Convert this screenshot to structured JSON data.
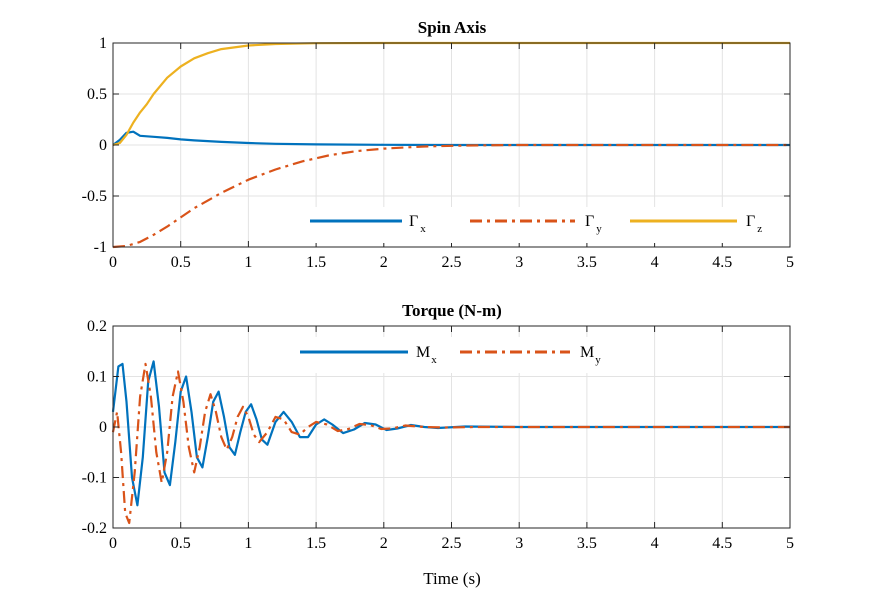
{
  "chart_data": [
    {
      "type": "line",
      "title": "Spin Axis",
      "xlabel": "",
      "ylabel": "",
      "xlim": [
        0,
        5
      ],
      "ylim": [
        -1,
        1
      ],
      "xticks": [
        "0",
        "0.5",
        "1",
        "1.5",
        "2",
        "2.5",
        "3",
        "3.5",
        "4",
        "4.5",
        "5"
      ],
      "yticks": [
        "-1",
        "-0.5",
        "0",
        "0.5",
        "1"
      ],
      "grid": true,
      "legend_position": "bottom-right, horizontal",
      "series": [
        {
          "name": "Γx",
          "symbol": "Γ",
          "sub": "x",
          "color": "#0072BD",
          "dash": "solid",
          "points": [
            [
              0,
              0
            ],
            [
              0.05,
              0.05
            ],
            [
              0.1,
              0.12
            ],
            [
              0.15,
              0.13
            ],
            [
              0.2,
              0.09
            ],
            [
              0.3,
              0.08
            ],
            [
              0.4,
              0.07
            ],
            [
              0.5,
              0.055
            ],
            [
              0.6,
              0.045
            ],
            [
              0.8,
              0.03
            ],
            [
              1.0,
              0.02
            ],
            [
              1.2,
              0.012
            ],
            [
              1.5,
              0.006
            ],
            [
              2.0,
              0.002
            ],
            [
              2.5,
              0.0
            ],
            [
              5.0,
              0.0
            ]
          ]
        },
        {
          "name": "Γy",
          "symbol": "Γ",
          "sub": "y",
          "color": "#D95319",
          "dash": "dashdot",
          "points": [
            [
              0,
              -1.0
            ],
            [
              0.1,
              -0.99
            ],
            [
              0.2,
              -0.95
            ],
            [
              0.3,
              -0.88
            ],
            [
              0.4,
              -0.8
            ],
            [
              0.5,
              -0.71
            ],
            [
              0.6,
              -0.62
            ],
            [
              0.8,
              -0.47
            ],
            [
              1.0,
              -0.34
            ],
            [
              1.2,
              -0.24
            ],
            [
              1.4,
              -0.16
            ],
            [
              1.6,
              -0.1
            ],
            [
              1.8,
              -0.06
            ],
            [
              2.0,
              -0.035
            ],
            [
              2.3,
              -0.015
            ],
            [
              2.6,
              -0.005
            ],
            [
              3.0,
              0.0
            ],
            [
              5.0,
              0.0
            ]
          ]
        },
        {
          "name": "Γz",
          "symbol": "Γ",
          "sub": "z",
          "color": "#EDB120",
          "dash": "solid",
          "points": [
            [
              0,
              0.0
            ],
            [
              0.05,
              0.02
            ],
            [
              0.1,
              0.1
            ],
            [
              0.15,
              0.22
            ],
            [
              0.2,
              0.32
            ],
            [
              0.25,
              0.4
            ],
            [
              0.3,
              0.5
            ],
            [
              0.4,
              0.66
            ],
            [
              0.5,
              0.77
            ],
            [
              0.6,
              0.85
            ],
            [
              0.7,
              0.9
            ],
            [
              0.8,
              0.94
            ],
            [
              1.0,
              0.975
            ],
            [
              1.2,
              0.99
            ],
            [
              1.5,
              0.998
            ],
            [
              2.0,
              1.0
            ],
            [
              5.0,
              1.0
            ]
          ]
        }
      ]
    },
    {
      "type": "line",
      "title": "Torque (N-m)",
      "xlabel": "Time (s)",
      "ylabel": "",
      "xlim": [
        0,
        5
      ],
      "ylim": [
        -0.2,
        0.2
      ],
      "xticks": [
        "0",
        "0.5",
        "1",
        "1.5",
        "2",
        "2.5",
        "3",
        "3.5",
        "4",
        "4.5",
        "5"
      ],
      "yticks": [
        "-0.2",
        "-0.1",
        "0",
        "0.1",
        "0.2"
      ],
      "grid": true,
      "legend_position": "top-center, horizontal",
      "series": [
        {
          "name": "Mx",
          "symbol": "M",
          "sub": "x",
          "color": "#0072BD",
          "dash": "solid",
          "points": [
            [
              0,
              0.03
            ],
            [
              0.04,
              0.12
            ],
            [
              0.07,
              0.125
            ],
            [
              0.1,
              0.05
            ],
            [
              0.14,
              -0.1
            ],
            [
              0.18,
              -0.155
            ],
            [
              0.22,
              -0.06
            ],
            [
              0.26,
              0.09
            ],
            [
              0.3,
              0.13
            ],
            [
              0.34,
              0.04
            ],
            [
              0.38,
              -0.09
            ],
            [
              0.42,
              -0.115
            ],
            [
              0.46,
              -0.03
            ],
            [
              0.5,
              0.07
            ],
            [
              0.54,
              0.1
            ],
            [
              0.58,
              0.03
            ],
            [
              0.62,
              -0.06
            ],
            [
              0.66,
              -0.08
            ],
            [
              0.7,
              -0.02
            ],
            [
              0.74,
              0.05
            ],
            [
              0.78,
              0.07
            ],
            [
              0.82,
              0.02
            ],
            [
              0.86,
              -0.04
            ],
            [
              0.9,
              -0.055
            ],
            [
              0.94,
              -0.01
            ],
            [
              0.98,
              0.03
            ],
            [
              1.02,
              0.045
            ],
            [
              1.06,
              0.015
            ],
            [
              1.1,
              -0.025
            ],
            [
              1.14,
              -0.035
            ],
            [
              1.2,
              0.01
            ],
            [
              1.26,
              0.03
            ],
            [
              1.32,
              0.01
            ],
            [
              1.38,
              -0.02
            ],
            [
              1.44,
              -0.02
            ],
            [
              1.5,
              0.005
            ],
            [
              1.56,
              0.015
            ],
            [
              1.62,
              0.005
            ],
            [
              1.7,
              -0.012
            ],
            [
              1.78,
              -0.005
            ],
            [
              1.86,
              0.008
            ],
            [
              1.94,
              0.005
            ],
            [
              2.02,
              -0.006
            ],
            [
              2.1,
              -0.003
            ],
            [
              2.2,
              0.004
            ],
            [
              2.3,
              0.0
            ],
            [
              2.4,
              -0.002
            ],
            [
              2.6,
              0.001
            ],
            [
              3.0,
              0.0
            ],
            [
              5.0,
              0.0
            ]
          ]
        },
        {
          "name": "My",
          "symbol": "M",
          "sub": "y",
          "color": "#D95319",
          "dash": "dashdot",
          "points": [
            [
              0,
              -0.01
            ],
            [
              0.03,
              0.03
            ],
            [
              0.06,
              -0.05
            ],
            [
              0.09,
              -0.17
            ],
            [
              0.12,
              -0.19
            ],
            [
              0.16,
              -0.09
            ],
            [
              0.2,
              0.06
            ],
            [
              0.24,
              0.125
            ],
            [
              0.28,
              0.06
            ],
            [
              0.32,
              -0.05
            ],
            [
              0.36,
              -0.11
            ],
            [
              0.4,
              -0.05
            ],
            [
              0.44,
              0.06
            ],
            [
              0.48,
              0.11
            ],
            [
              0.52,
              0.05
            ],
            [
              0.56,
              -0.04
            ],
            [
              0.6,
              -0.09
            ],
            [
              0.64,
              -0.04
            ],
            [
              0.68,
              0.03
            ],
            [
              0.72,
              0.065
            ],
            [
              0.76,
              0.03
            ],
            [
              0.8,
              -0.02
            ],
            [
              0.84,
              -0.045
            ],
            [
              0.88,
              -0.02
            ],
            [
              0.92,
              0.02
            ],
            [
              0.96,
              0.04
            ],
            [
              1.0,
              0.02
            ],
            [
              1.04,
              -0.015
            ],
            [
              1.08,
              -0.03
            ],
            [
              1.14,
              -0.01
            ],
            [
              1.2,
              0.02
            ],
            [
              1.26,
              0.015
            ],
            [
              1.32,
              -0.01
            ],
            [
              1.38,
              -0.015
            ],
            [
              1.44,
              0.0
            ],
            [
              1.5,
              0.01
            ],
            [
              1.58,
              0.005
            ],
            [
              1.66,
              -0.008
            ],
            [
              1.74,
              -0.004
            ],
            [
              1.82,
              0.006
            ],
            [
              1.9,
              0.004
            ],
            [
              1.98,
              -0.004
            ],
            [
              2.06,
              -0.003
            ],
            [
              2.16,
              0.003
            ],
            [
              2.3,
              0.0
            ],
            [
              2.45,
              -0.001
            ],
            [
              2.7,
              0.0
            ],
            [
              5.0,
              0.0
            ]
          ]
        }
      ]
    }
  ]
}
